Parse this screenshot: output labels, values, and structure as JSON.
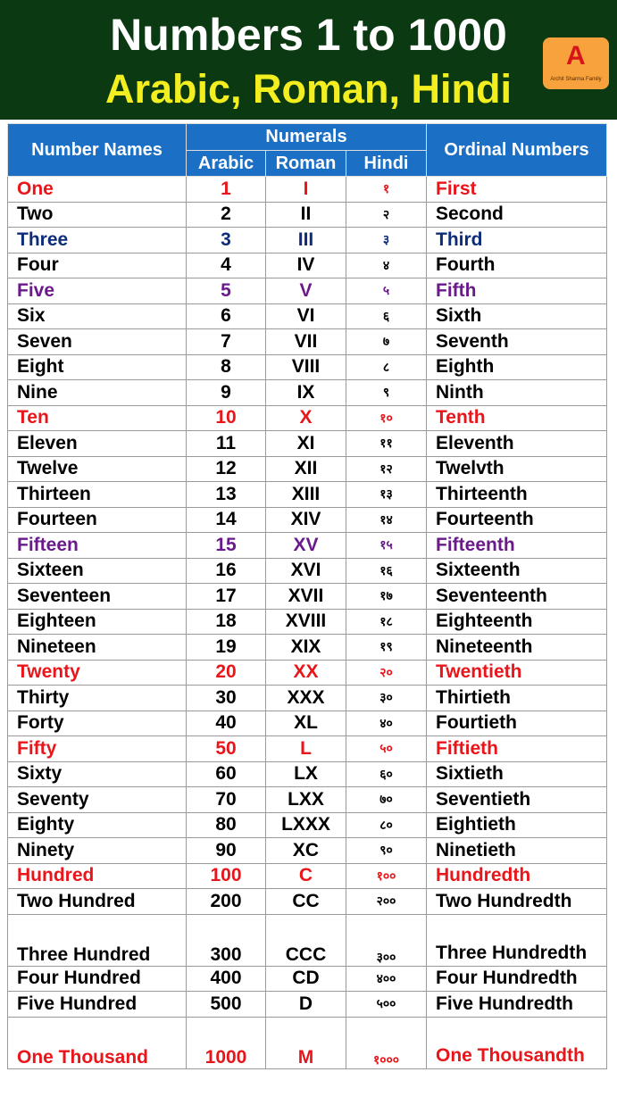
{
  "header": {
    "title": "Numbers 1 to 1000",
    "subtitle": "Arabic, Roman, Hindi",
    "logo_text": "Archit Sharma Family"
  },
  "table": {
    "headers": {
      "names": "Number Names",
      "numerals": "Numerals",
      "arabic": "Arabic",
      "roman": "Roman",
      "hindi": "Hindi",
      "ordinal": "Ordinal Numbers"
    },
    "rows": [
      {
        "cells": [
          "One",
          "1",
          "I",
          "१",
          "First"
        ],
        "color": "#e8161b"
      },
      {
        "cells": [
          "Two",
          "2",
          "II",
          "२",
          "Second"
        ]
      },
      {
        "cells": [
          "Three",
          "3",
          "III",
          "३",
          "Third"
        ],
        "color": "#0d2d7a"
      },
      {
        "cells": [
          "Four",
          "4",
          "IV",
          "४",
          "Fourth"
        ]
      },
      {
        "cells": [
          "Five",
          "5",
          "V",
          "५",
          "Fifth"
        ],
        "color": "#6a1a8a"
      },
      {
        "cells": [
          "Six",
          "6",
          "VI",
          "६",
          "Sixth"
        ]
      },
      {
        "cells": [
          "Seven",
          "7",
          "VII",
          "७",
          "Seventh"
        ]
      },
      {
        "cells": [
          "Eight",
          "8",
          "VIII",
          "८",
          "Eighth"
        ]
      },
      {
        "cells": [
          "Nine",
          "9",
          "IX",
          "९",
          "Ninth"
        ]
      },
      {
        "cells": [
          "Ten",
          "10",
          "X",
          "१०",
          "Tenth"
        ],
        "color": "#e8161b"
      },
      {
        "cells": [
          "Eleven",
          "11",
          "XI",
          "११",
          "Eleventh"
        ]
      },
      {
        "cells": [
          "Twelve",
          "12",
          "XII",
          "१२",
          "Twelvth"
        ]
      },
      {
        "cells": [
          "Thirteen",
          "13",
          "XIII",
          "१३",
          "Thirteenth"
        ]
      },
      {
        "cells": [
          "Fourteen",
          "14",
          "XIV",
          "१४",
          "Fourteenth"
        ]
      },
      {
        "cells": [
          "Fifteen",
          "15",
          "XV",
          "१५",
          "Fifteenth"
        ],
        "color": "#6a1a8a"
      },
      {
        "cells": [
          "Sixteen",
          "16",
          "XVI",
          "१६",
          "Sixteenth"
        ]
      },
      {
        "cells": [
          "Seventeen",
          "17",
          "XVII",
          "१७",
          "Seventeenth"
        ]
      },
      {
        "cells": [
          "Eighteen",
          "18",
          "XVIII",
          "१८",
          "Eighteenth"
        ]
      },
      {
        "cells": [
          "Nineteen",
          "19",
          "XIX",
          "१९",
          "Nineteenth"
        ]
      },
      {
        "cells": [
          "Twenty",
          "20",
          "XX",
          "२०",
          "Twentieth"
        ],
        "color": "#e8161b"
      },
      {
        "cells": [
          "Thirty",
          "30",
          "XXX",
          "३०",
          "Thirtieth"
        ]
      },
      {
        "cells": [
          "Forty",
          "40",
          "XL",
          "४०",
          "Fourtieth"
        ]
      },
      {
        "cells": [
          "Fifty",
          "50",
          "L",
          "५०",
          "Fiftieth"
        ],
        "color": "#e8161b"
      },
      {
        "cells": [
          "Sixty",
          "60",
          "LX",
          "६०",
          "Sixtieth"
        ]
      },
      {
        "cells": [
          "Seventy",
          "70",
          "LXX",
          "७०",
          "Seventieth"
        ]
      },
      {
        "cells": [
          "Eighty",
          "80",
          "LXXX",
          "८०",
          "Eightieth"
        ]
      },
      {
        "cells": [
          "Ninety",
          "90",
          "XC",
          "९०",
          "Ninetieth"
        ]
      },
      {
        "cells": [
          "Hundred",
          "100",
          "C",
          "१००",
          "Hundredth"
        ],
        "color": "#e8161b"
      },
      {
        "cells": [
          "Two Hundred",
          "200",
          "CC",
          "२००",
          "Two Hundredth"
        ]
      },
      {
        "cells": [
          "Three Hundred",
          "300",
          "CCC",
          "३००",
          "Three Hundredth"
        ]
      },
      {
        "cells": [
          "Four Hundred",
          "400",
          "CD",
          "४००",
          "Four Hundredth"
        ]
      },
      {
        "cells": [
          "Five Hundred",
          "500",
          "D",
          "५००",
          "Five Hundredth"
        ]
      },
      {
        "cells": [
          "One Thousand",
          "1000",
          "M",
          "१०००",
          "One Thousandth"
        ],
        "color": "#e8161b"
      }
    ]
  }
}
